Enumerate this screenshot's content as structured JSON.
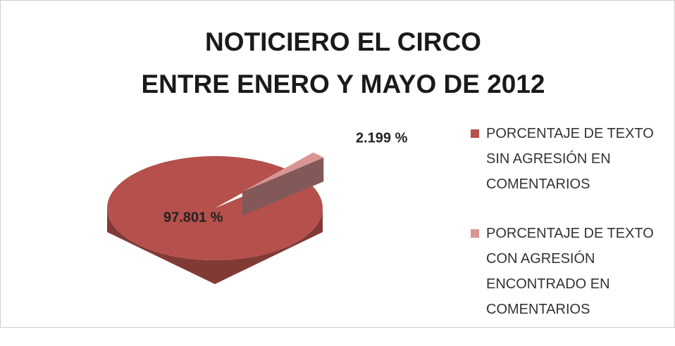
{
  "chart_data": {
    "type": "pie",
    "title": [
      "NOTICIERO EL CIRCO",
      "ENTRE ENERO Y MAYO DE 2012"
    ],
    "categories": [
      "PORCENTAJE DE TEXTO SIN AGRESIÓN EN COMENTARIOS",
      "PORCENTAJE DE TEXTO CON AGRESIÓN ENCONTRADO EN COMENTARIOS"
    ],
    "values": [
      97.801,
      2.199
    ],
    "value_labels": [
      "97.801 %",
      "2.199 %"
    ],
    "colors": [
      "#b5504c",
      "#d99593"
    ],
    "legend": "right"
  }
}
